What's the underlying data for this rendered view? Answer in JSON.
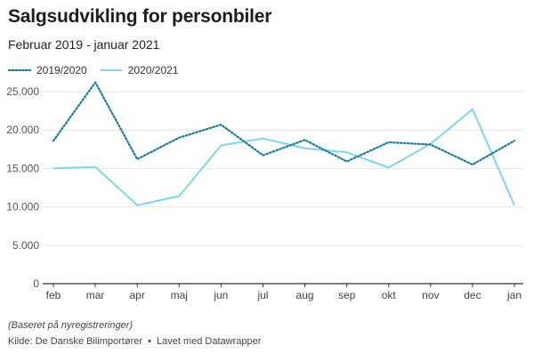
{
  "title": "Salgsudvikling for personbiler",
  "subtitle": "Februar 2019 - januar 2021",
  "note": "(Baseret på nyregistreringer)",
  "source": {
    "label": "Kilde:",
    "name": "De Danske Bilimportører",
    "separator": "•",
    "made_with": "Lavet med Datawrapper"
  },
  "colors": {
    "series_2019": "#1b7a9e",
    "series_2020": "#7dd6ee",
    "grid": "#e6e6e6",
    "axis": "#333333"
  },
  "chart_data": {
    "type": "line",
    "categories": [
      "feb",
      "mar",
      "apr",
      "maj",
      "jun",
      "jul",
      "aug",
      "sep",
      "okt",
      "nov",
      "dec",
      "jan"
    ],
    "ylim": [
      0,
      25000
    ],
    "yticks": [
      0,
      5000,
      10000,
      15000,
      20000,
      25000
    ],
    "ytick_labels": [
      "0",
      "5.000",
      "10.000",
      "15.000",
      "20.000",
      "25.000"
    ],
    "grid": true,
    "legend_position": "top-left",
    "series": [
      {
        "name": "2019/2020",
        "style": "dotted",
        "color": "#1b7a9e",
        "values": [
          18600,
          26200,
          16200,
          19000,
          20700,
          16700,
          18700,
          15900,
          18400,
          18100,
          15500,
          18600
        ]
      },
      {
        "name": "2020/2021",
        "style": "solid",
        "color": "#7dd6ee",
        "values": [
          15000,
          15200,
          10200,
          11400,
          18000,
          18900,
          17600,
          17100,
          15100,
          18200,
          22700,
          10200
        ]
      }
    ]
  }
}
